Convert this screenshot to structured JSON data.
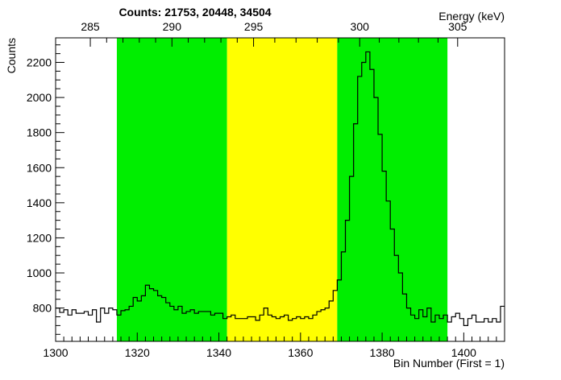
{
  "chart_data": {
    "type": "histogram",
    "title": "Counts:   21753,   20448,   34504",
    "xlabel": "Bin Number (First = 1)",
    "ylabel": "Counts",
    "x2label": "Energy (keV)",
    "xlim": [
      1300,
      1410
    ],
    "ylim": [
      610,
      2340
    ],
    "x_ticks": [
      1300,
      1320,
      1340,
      1360,
      1380,
      1400
    ],
    "y_ticks": [
      800,
      1000,
      1200,
      1400,
      1600,
      1800,
      2000,
      2200
    ],
    "x2_ticks": [
      {
        "label": "285",
        "bin": 1308.5
      },
      {
        "label": "290",
        "bin": 1328.5
      },
      {
        "label": "295",
        "bin": 1348.5
      },
      {
        "label": "300",
        "bin": 1374.5
      },
      {
        "label": "305",
        "bin": 1398.5
      }
    ],
    "regions": [
      {
        "x0": 1315,
        "x1": 1342,
        "color": "#00ee00"
      },
      {
        "x0": 1342,
        "x1": 1369,
        "color": "#ffff00"
      },
      {
        "x0": 1369,
        "x1": 1396,
        "color": "#00ee00"
      }
    ],
    "region_counts": [
      21753,
      20448,
      34504
    ],
    "bins_start": 1299,
    "bin_width": 1,
    "values": [
      790,
      800,
      775,
      790,
      760,
      790,
      770,
      770,
      780,
      760,
      790,
      720,
      800,
      770,
      800,
      790,
      760,
      785,
      790,
      810,
      860,
      840,
      870,
      930,
      910,
      900,
      870,
      860,
      830,
      810,
      790,
      810,
      770,
      780,
      790,
      770,
      780,
      780,
      780,
      760,
      770,
      770,
      740,
      750,
      760,
      740,
      740,
      740,
      750,
      750,
      730,
      760,
      800,
      760,
      750,
      740,
      750,
      760,
      730,
      740,
      750,
      740,
      750,
      740,
      760,
      780,
      790,
      800,
      840,
      900,
      960,
      1120,
      1300,
      1550,
      1850,
      2120,
      2200,
      2260,
      2160,
      2000,
      1790,
      1580,
      1410,
      1250,
      1100,
      1000,
      880,
      800,
      760,
      740,
      790,
      750,
      800,
      720,
      760,
      740,
      760,
      720,
      750,
      770,
      740,
      700,
      740,
      760,
      720,
      720,
      740,
      720,
      740,
      720,
      810
    ]
  }
}
